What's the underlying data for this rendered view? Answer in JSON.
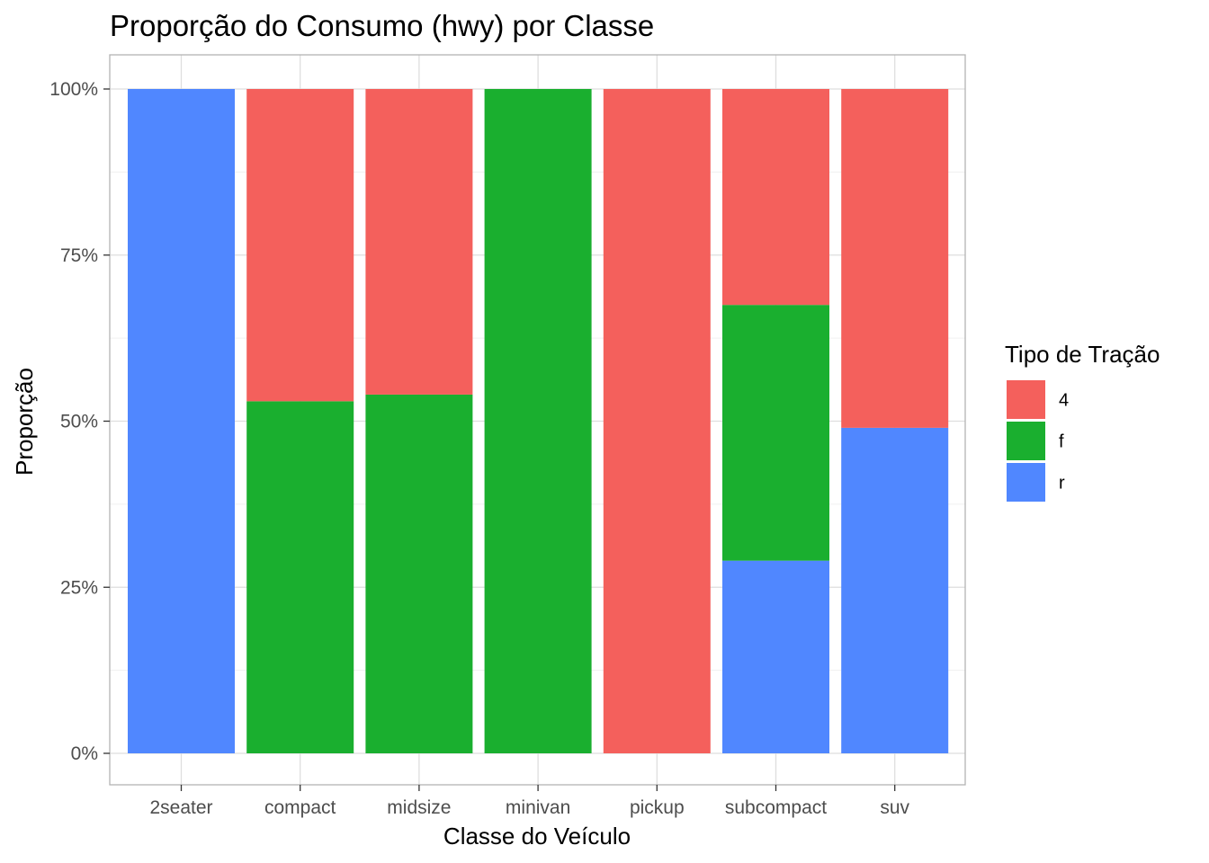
{
  "chart_data": {
    "type": "bar",
    "stacked": "proportion",
    "title": "Proporção do Consumo (hwy) por Classe",
    "xlabel": "Classe do Veículo",
    "ylabel": "Proporção",
    "ylim": [
      0,
      1
    ],
    "y_ticks": [
      {
        "value": 0,
        "label": "0%"
      },
      {
        "value": 0.25,
        "label": "25%"
      },
      {
        "value": 0.5,
        "label": "50%"
      },
      {
        "value": 0.75,
        "label": "75%"
      },
      {
        "value": 1,
        "label": "100%"
      }
    ],
    "categories": [
      "2seater",
      "compact",
      "midsize",
      "minivan",
      "pickup",
      "subcompact",
      "suv"
    ],
    "series": [
      {
        "name": "4",
        "color": "#f4605c",
        "values": [
          0,
          0.47,
          0.46,
          0,
          1,
          0.325,
          0.51
        ]
      },
      {
        "name": "f",
        "color": "#1aaf2f",
        "values": [
          0,
          0.53,
          0.54,
          1,
          0,
          0.385,
          0
        ]
      },
      {
        "name": "r",
        "color": "#5087ff",
        "values": [
          1,
          0,
          0,
          0,
          0,
          0.29,
          0.49
        ]
      }
    ],
    "legend": {
      "title": "Tipo de Tração",
      "position": "right"
    },
    "grid": true
  }
}
